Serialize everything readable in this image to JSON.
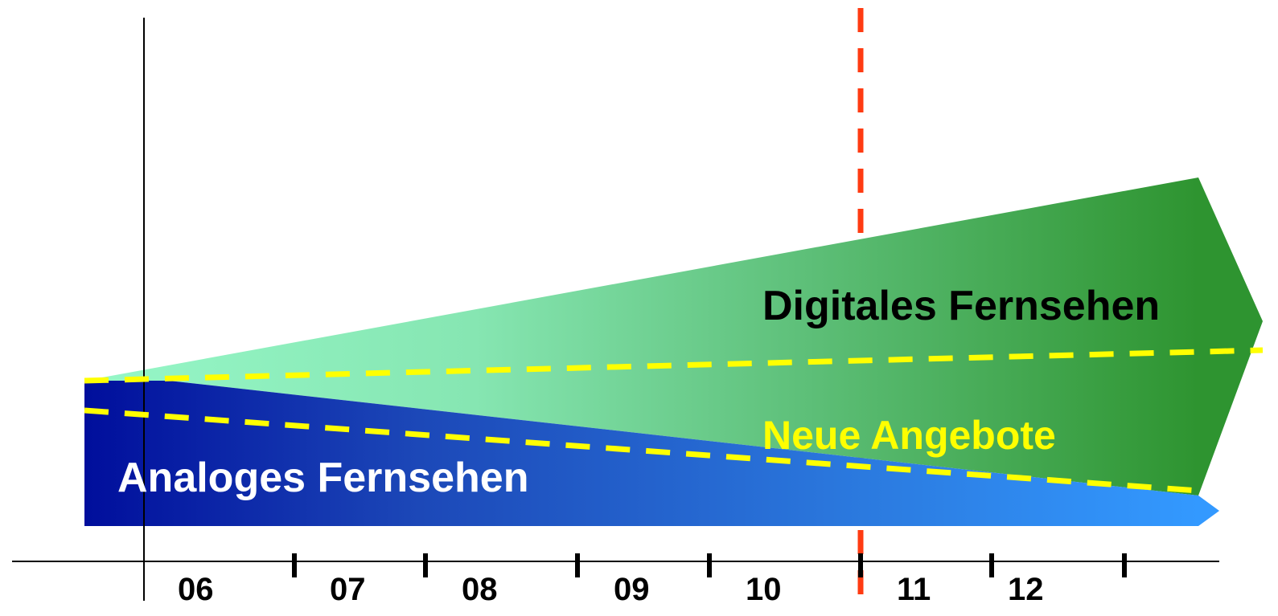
{
  "labels": {
    "digital": "Digitales Fernsehen",
    "neue": "Neue Angebote",
    "analog": "Analoges Fernsehen"
  },
  "years": [
    "06",
    "07",
    "08",
    "09",
    "10",
    "11",
    "12"
  ],
  "colors": {
    "digital_light": "#96f7c8",
    "digital_dark": "#2e9430",
    "analog_dark": "#000e9c",
    "analog_light": "#3399ff",
    "dashes_yellow": "#ffff00",
    "marker_red": "#ff3b12",
    "neue_text": "#ffff00",
    "analog_text": "#ffffff",
    "digital_text": "#000000"
  }
}
